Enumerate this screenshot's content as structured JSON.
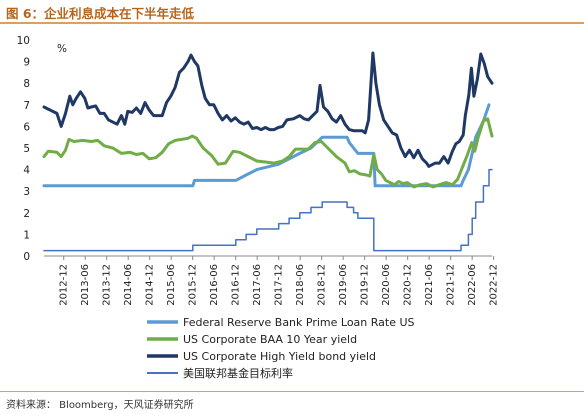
{
  "title": "图 6：企业利息成本在下半年走低",
  "source": "资料来源：  Bloomberg，天风证券研究所",
  "chart_data": {
    "type": "line",
    "ylabel": "%",
    "ylim": [
      0,
      10
    ],
    "yticks": [
      0,
      1,
      2,
      3,
      4,
      5,
      6,
      7,
      8,
      9,
      10
    ],
    "xlim": [
      2012.5,
      2022.92
    ],
    "xticks": [
      "2012-12",
      "2013-06",
      "2013-12",
      "2014-06",
      "2014-12",
      "2015-06",
      "2015-12",
      "2016-06",
      "2016-12",
      "2017-06",
      "2017-12",
      "2018-06",
      "2018-12",
      "2019-06",
      "2019-12",
      "2020-06",
      "2020-12",
      "2021-06",
      "2021-12",
      "2022-06",
      "2022-12"
    ],
    "grid": false,
    "legend_position": "bottom",
    "series": [
      {
        "name": "Federal Reserve Bank Prime Loan Rate US",
        "color": "#5b9bd5",
        "width": 3,
        "points": [
          [
            2012.5,
            3.25
          ],
          [
            2015.96,
            3.25
          ],
          [
            2016.0,
            3.5
          ],
          [
            2016.96,
            3.5
          ],
          [
            2017.2,
            3.75
          ],
          [
            2017.45,
            4.0
          ],
          [
            2017.96,
            4.25
          ],
          [
            2018.2,
            4.5
          ],
          [
            2018.45,
            4.75
          ],
          [
            2018.71,
            5.0
          ],
          [
            2018.97,
            5.5
          ],
          [
            2019.55,
            5.5
          ],
          [
            2019.6,
            5.25
          ],
          [
            2019.7,
            5.0
          ],
          [
            2019.8,
            4.75
          ],
          [
            2020.17,
            4.75
          ],
          [
            2020.2,
            3.25
          ],
          [
            2022.2,
            3.25
          ],
          [
            2022.25,
            3.5
          ],
          [
            2022.37,
            4.0
          ],
          [
            2022.46,
            4.75
          ],
          [
            2022.54,
            5.5
          ],
          [
            2022.72,
            6.25
          ],
          [
            2022.85,
            7.0
          ]
        ]
      },
      {
        "name": "US Corporate BAA 10 Year yield",
        "color": "#70ad47",
        "width": 3,
        "points": [
          [
            2012.5,
            4.6
          ],
          [
            2012.6,
            4.85
          ],
          [
            2012.8,
            4.8
          ],
          [
            2012.9,
            4.6
          ],
          [
            2013.0,
            4.9
          ],
          [
            2013.08,
            5.4
          ],
          [
            2013.2,
            5.3
          ],
          [
            2013.4,
            5.35
          ],
          [
            2013.6,
            5.3
          ],
          [
            2013.75,
            5.35
          ],
          [
            2013.9,
            5.1
          ],
          [
            2014.1,
            5.0
          ],
          [
            2014.3,
            4.75
          ],
          [
            2014.5,
            4.8
          ],
          [
            2014.65,
            4.7
          ],
          [
            2014.8,
            4.75
          ],
          [
            2014.95,
            4.5
          ],
          [
            2015.1,
            4.55
          ],
          [
            2015.25,
            4.8
          ],
          [
            2015.4,
            5.2
          ],
          [
            2015.55,
            5.35
          ],
          [
            2015.7,
            5.4
          ],
          [
            2015.85,
            5.45
          ],
          [
            2015.95,
            5.55
          ],
          [
            2016.05,
            5.45
          ],
          [
            2016.2,
            5.0
          ],
          [
            2016.4,
            4.65
          ],
          [
            2016.55,
            4.25
          ],
          [
            2016.72,
            4.3
          ],
          [
            2016.9,
            4.85
          ],
          [
            2017.05,
            4.8
          ],
          [
            2017.25,
            4.6
          ],
          [
            2017.45,
            4.4
          ],
          [
            2017.65,
            4.35
          ],
          [
            2017.85,
            4.3
          ],
          [
            2018.05,
            4.4
          ],
          [
            2018.2,
            4.6
          ],
          [
            2018.35,
            4.95
          ],
          [
            2018.5,
            4.95
          ],
          [
            2018.65,
            4.95
          ],
          [
            2018.8,
            5.25
          ],
          [
            2018.95,
            5.3
          ],
          [
            2019.1,
            5.0
          ],
          [
            2019.3,
            4.6
          ],
          [
            2019.5,
            4.3
          ],
          [
            2019.6,
            3.9
          ],
          [
            2019.72,
            3.95
          ],
          [
            2019.85,
            3.8
          ],
          [
            2020.0,
            3.75
          ],
          [
            2020.08,
            3.7
          ],
          [
            2020.17,
            4.7
          ],
          [
            2020.25,
            4.0
          ],
          [
            2020.35,
            3.8
          ],
          [
            2020.45,
            3.5
          ],
          [
            2020.55,
            3.4
          ],
          [
            2020.65,
            3.3
          ],
          [
            2020.75,
            3.45
          ],
          [
            2020.85,
            3.35
          ],
          [
            2020.95,
            3.4
          ],
          [
            2021.1,
            3.2
          ],
          [
            2021.25,
            3.3
          ],
          [
            2021.4,
            3.35
          ],
          [
            2021.55,
            3.2
          ],
          [
            2021.7,
            3.3
          ],
          [
            2021.85,
            3.4
          ],
          [
            2022.0,
            3.3
          ],
          [
            2022.12,
            3.55
          ],
          [
            2022.25,
            4.2
          ],
          [
            2022.35,
            4.7
          ],
          [
            2022.45,
            5.25
          ],
          [
            2022.52,
            4.85
          ],
          [
            2022.6,
            5.5
          ],
          [
            2022.72,
            6.25
          ],
          [
            2022.82,
            6.35
          ],
          [
            2022.92,
            5.55
          ]
        ]
      },
      {
        "name": "US Corporate High Yield bond yield",
        "color": "#1f3864",
        "width": 3,
        "points": [
          [
            2012.5,
            6.9
          ],
          [
            2012.65,
            6.75
          ],
          [
            2012.8,
            6.6
          ],
          [
            2012.9,
            6.0
          ],
          [
            2013.0,
            6.6
          ],
          [
            2013.1,
            7.4
          ],
          [
            2013.17,
            7.0
          ],
          [
            2013.25,
            7.3
          ],
          [
            2013.35,
            7.6
          ],
          [
            2013.45,
            7.3
          ],
          [
            2013.52,
            6.85
          ],
          [
            2013.6,
            6.9
          ],
          [
            2013.7,
            6.95
          ],
          [
            2013.8,
            6.6
          ],
          [
            2013.9,
            6.6
          ],
          [
            2014.0,
            6.3
          ],
          [
            2014.1,
            6.2
          ],
          [
            2014.2,
            6.1
          ],
          [
            2014.3,
            6.5
          ],
          [
            2014.38,
            6.1
          ],
          [
            2014.45,
            6.7
          ],
          [
            2014.55,
            6.65
          ],
          [
            2014.65,
            6.85
          ],
          [
            2014.75,
            6.6
          ],
          [
            2014.85,
            7.1
          ],
          [
            2014.95,
            6.75
          ],
          [
            2015.05,
            6.5
          ],
          [
            2015.15,
            6.5
          ],
          [
            2015.25,
            6.5
          ],
          [
            2015.35,
            7.1
          ],
          [
            2015.45,
            7.4
          ],
          [
            2015.55,
            7.8
          ],
          [
            2015.65,
            8.5
          ],
          [
            2015.75,
            8.7
          ],
          [
            2015.85,
            9.0
          ],
          [
            2015.92,
            9.3
          ],
          [
            2016.0,
            9.0
          ],
          [
            2016.08,
            8.8
          ],
          [
            2016.17,
            7.9
          ],
          [
            2016.25,
            7.3
          ],
          [
            2016.35,
            7.0
          ],
          [
            2016.45,
            7.0
          ],
          [
            2016.55,
            6.6
          ],
          [
            2016.65,
            6.3
          ],
          [
            2016.75,
            6.5
          ],
          [
            2016.85,
            6.25
          ],
          [
            2016.95,
            6.4
          ],
          [
            2017.05,
            6.2
          ],
          [
            2017.15,
            6.1
          ],
          [
            2017.25,
            6.2
          ],
          [
            2017.35,
            5.9
          ],
          [
            2017.45,
            5.95
          ],
          [
            2017.55,
            5.85
          ],
          [
            2017.65,
            5.95
          ],
          [
            2017.75,
            5.85
          ],
          [
            2017.85,
            5.85
          ],
          [
            2017.95,
            5.95
          ],
          [
            2018.05,
            6.0
          ],
          [
            2018.15,
            6.3
          ],
          [
            2018.3,
            6.35
          ],
          [
            2018.45,
            6.5
          ],
          [
            2018.55,
            6.35
          ],
          [
            2018.65,
            6.3
          ],
          [
            2018.75,
            6.5
          ],
          [
            2018.85,
            6.7
          ],
          [
            2018.92,
            7.9
          ],
          [
            2019.0,
            6.9
          ],
          [
            2019.1,
            6.7
          ],
          [
            2019.2,
            6.35
          ],
          [
            2019.3,
            6.2
          ],
          [
            2019.4,
            6.5
          ],
          [
            2019.5,
            6.1
          ],
          [
            2019.6,
            5.85
          ],
          [
            2019.7,
            5.8
          ],
          [
            2019.8,
            5.8
          ],
          [
            2019.9,
            5.8
          ],
          [
            2019.97,
            5.7
          ],
          [
            2020.05,
            6.3
          ],
          [
            2020.15,
            9.4
          ],
          [
            2020.22,
            8.0
          ],
          [
            2020.3,
            7.0
          ],
          [
            2020.4,
            6.3
          ],
          [
            2020.5,
            6.0
          ],
          [
            2020.6,
            5.7
          ],
          [
            2020.7,
            5.6
          ],
          [
            2020.8,
            5.0
          ],
          [
            2020.9,
            4.6
          ],
          [
            2021.0,
            4.9
          ],
          [
            2021.1,
            4.55
          ],
          [
            2021.2,
            4.9
          ],
          [
            2021.3,
            4.5
          ],
          [
            2021.4,
            4.3
          ],
          [
            2021.45,
            4.15
          ],
          [
            2021.6,
            4.3
          ],
          [
            2021.7,
            4.3
          ],
          [
            2021.8,
            4.6
          ],
          [
            2021.9,
            4.3
          ],
          [
            2022.0,
            4.85
          ],
          [
            2022.08,
            5.2
          ],
          [
            2022.16,
            5.3
          ],
          [
            2022.25,
            5.6
          ],
          [
            2022.3,
            6.5
          ],
          [
            2022.38,
            7.45
          ],
          [
            2022.44,
            8.7
          ],
          [
            2022.5,
            7.4
          ],
          [
            2022.58,
            8.2
          ],
          [
            2022.66,
            9.35
          ],
          [
            2022.74,
            8.9
          ],
          [
            2022.82,
            8.3
          ],
          [
            2022.92,
            8.0
          ]
        ]
      },
      {
        "name": "美国联邦基金目标利率",
        "color": "#4472c4",
        "width": 1.5,
        "step": true,
        "points": [
          [
            2012.5,
            0.25
          ],
          [
            2015.96,
            0.25
          ],
          [
            2015.96,
            0.5
          ],
          [
            2016.96,
            0.5
          ],
          [
            2016.96,
            0.75
          ],
          [
            2017.2,
            0.75
          ],
          [
            2017.2,
            1.0
          ],
          [
            2017.45,
            1.0
          ],
          [
            2017.45,
            1.25
          ],
          [
            2017.96,
            1.25
          ],
          [
            2017.96,
            1.5
          ],
          [
            2018.2,
            1.5
          ],
          [
            2018.2,
            1.75
          ],
          [
            2018.45,
            1.75
          ],
          [
            2018.45,
            2.0
          ],
          [
            2018.71,
            2.0
          ],
          [
            2018.71,
            2.25
          ],
          [
            2018.97,
            2.25
          ],
          [
            2018.97,
            2.5
          ],
          [
            2019.55,
            2.5
          ],
          [
            2019.55,
            2.25
          ],
          [
            2019.7,
            2.25
          ],
          [
            2019.7,
            2.0
          ],
          [
            2019.8,
            2.0
          ],
          [
            2019.8,
            1.75
          ],
          [
            2020.17,
            1.75
          ],
          [
            2020.17,
            0.25
          ],
          [
            2022.2,
            0.25
          ],
          [
            2022.2,
            0.5
          ],
          [
            2022.37,
            0.5
          ],
          [
            2022.37,
            1.0
          ],
          [
            2022.46,
            1.0
          ],
          [
            2022.46,
            1.75
          ],
          [
            2022.54,
            1.75
          ],
          [
            2022.54,
            2.5
          ],
          [
            2022.72,
            2.5
          ],
          [
            2022.72,
            3.25
          ],
          [
            2022.85,
            3.25
          ],
          [
            2022.85,
            4.0
          ],
          [
            2022.92,
            4.0
          ]
        ]
      }
    ]
  }
}
